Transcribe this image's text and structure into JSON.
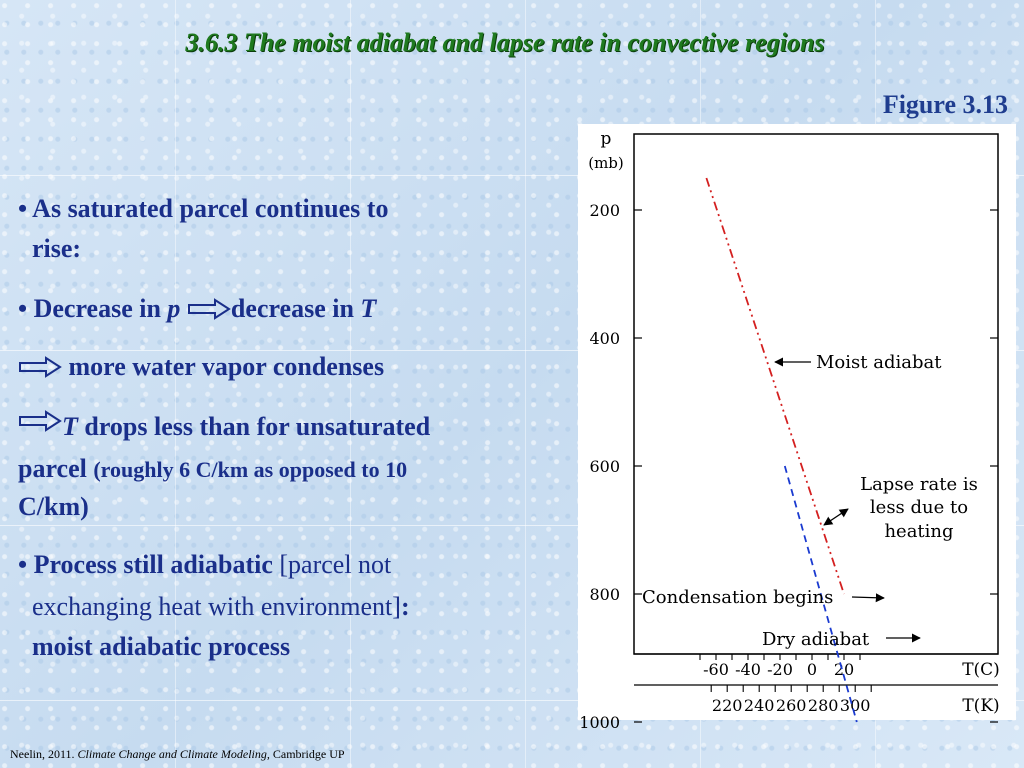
{
  "slide": {
    "title": "3.6.3 The moist adiabat and lapse rate in convective regions",
    "figure_label": "Figure 3.13",
    "bullet1_line1": "• As saturated parcel continues to",
    "bullet1_line2": "rise:",
    "bullet2_prefix": "• Decrease in ",
    "bullet2_p": "p",
    "bullet2_mid": "decrease in ",
    "bullet2_T": "T",
    "line3_text": " more water vapor condenses",
    "line4_T": "T",
    "line4_rest": " drops less than for unsaturated",
    "line5_bold": "parcel ",
    "line5_small": "(roughly 6 C/km as opposed to 10",
    "line6": "C/km)",
    "bullet3_prefix": "• ",
    "bullet3_bold": "Process still adiabatic",
    "bullet3_norm": " [parcel not",
    "bullet3_line2": "exchanging heat with environment]",
    "bullet3_colon": ":",
    "bullet3_red": "moist adiabatic process",
    "citation_plain": "Neelin, 2011. ",
    "citation_italic": "Climate Change and Climate Modeling,",
    "citation_end": " Cambridge UP",
    "colors": {
      "title": "#1f7a1f",
      "body": "#1a2f8a",
      "emphasis": "#8b1010",
      "moist": "#d42020",
      "dry": "#1a3ad0"
    }
  },
  "chart_data": {
    "type": "line",
    "y_label_top": "p",
    "y_label_unit": "(mb)",
    "y_ticks": [
      "200",
      "400",
      "600",
      "800",
      "1000"
    ],
    "x_label_C": "T(C)",
    "x_ticks_C": [
      "-60",
      "-40",
      "-20",
      "0",
      "20"
    ],
    "x_label_K": "T(K)",
    "x_ticks_K": [
      "220",
      "240",
      "260",
      "280",
      "300"
    ],
    "series": [
      {
        "name": "Moist adiabat",
        "style": "dash-dot",
        "color": "#d42020",
        "points": [
          [
            -66,
            150
          ],
          [
            20,
            800
          ]
        ]
      },
      {
        "name": "Dry adiabat",
        "style": "dashed",
        "color": "#1a3ad0",
        "points": [
          [
            -17,
            600
          ],
          [
            28,
            1000
          ]
        ]
      }
    ],
    "annotations": {
      "moist": "Moist adiabat",
      "lapse1": "Lapse rate is",
      "lapse2": "less due to",
      "lapse3": "heating",
      "condensation": "Condensation begins",
      "dry": "Dry adiabat"
    }
  }
}
